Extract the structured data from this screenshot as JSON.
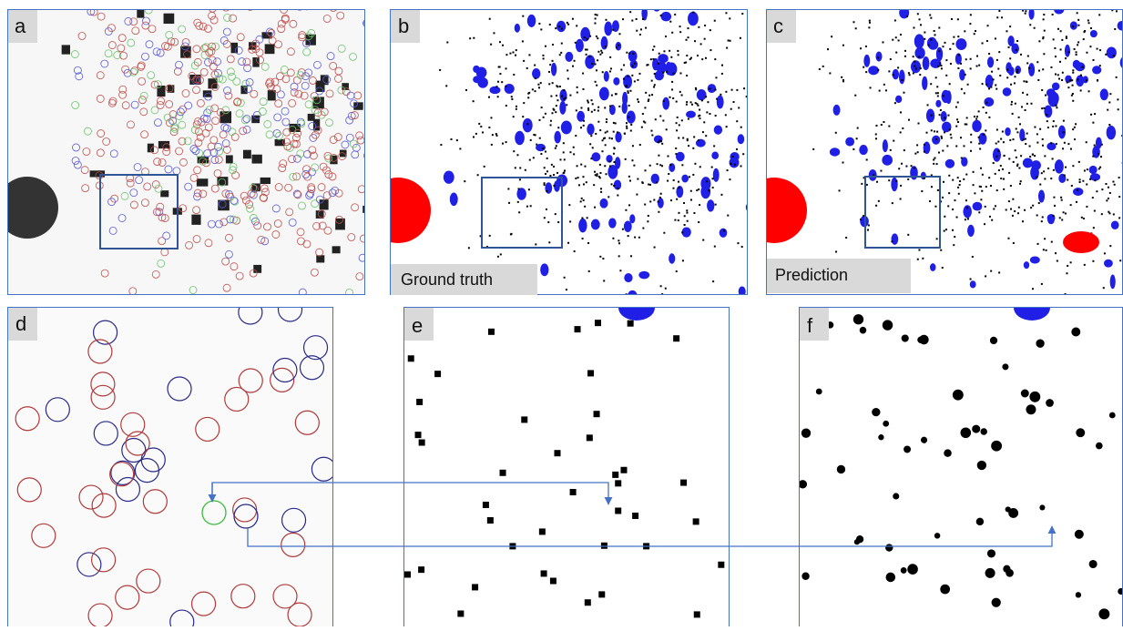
{
  "panels": [
    {
      "label": "a"
    },
    {
      "label": "b",
      "caption": "Ground truth"
    },
    {
      "label": "c",
      "caption": "Prediction"
    },
    {
      "label": "d"
    },
    {
      "label": "e"
    },
    {
      "label": "f"
    }
  ]
}
